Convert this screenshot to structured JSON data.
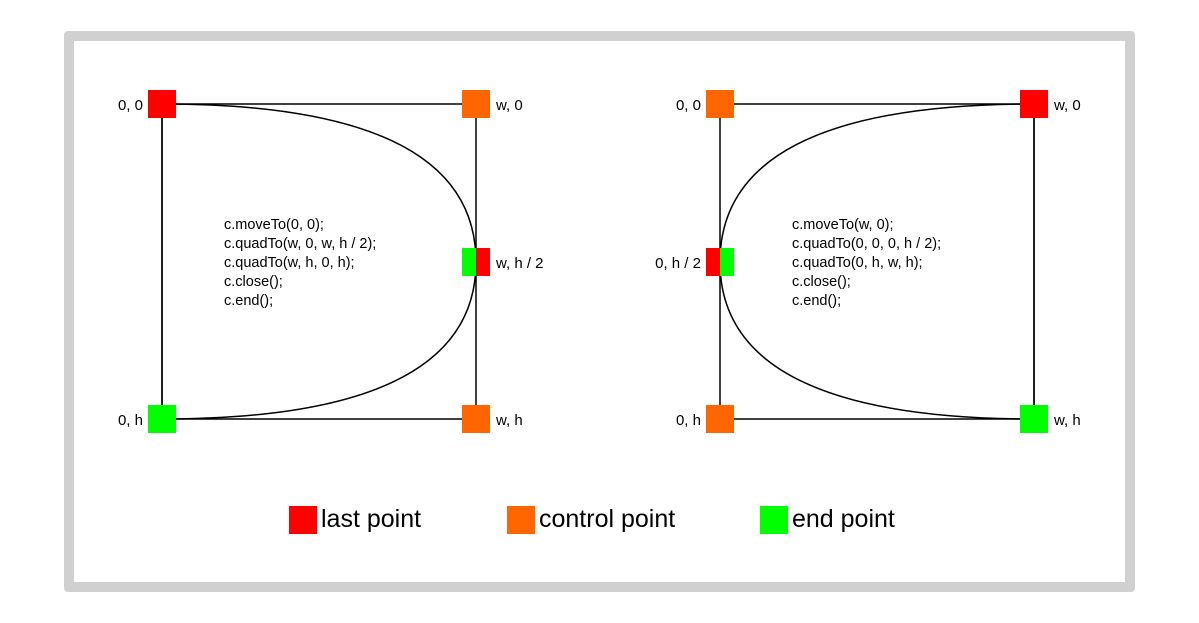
{
  "colors": {
    "last_point": "#ff0000",
    "control_point": "#ff6600",
    "end_point": "#00ff00",
    "frame": "#d0d0d0",
    "line": "#000000"
  },
  "left": {
    "labels": {
      "top_left": "0, 0",
      "top_right": "w, 0",
      "mid_right": "w, h / 2",
      "bottom_left": "0, h",
      "bottom_right": "w, h"
    },
    "code": [
      "c.moveTo(0, 0);",
      "c.quadTo(w, 0, w, h / 2);",
      "c.quadTo(w, h, 0, h);",
      "c.close();",
      "c.end();"
    ]
  },
  "right": {
    "labels": {
      "top_left": "0, 0",
      "top_right": "w, 0",
      "mid_left": "0, h / 2",
      "bottom_left": "0, h",
      "bottom_right": "w, h"
    },
    "code": [
      "c.moveTo(w, 0);",
      "c.quadTo(0, 0, 0, h / 2);",
      "c.quadTo(0, h, w, h);",
      "c.close();",
      "c.end();"
    ]
  },
  "legend": {
    "last_point": "last point",
    "control_point": "control point",
    "end_point": "end point"
  }
}
